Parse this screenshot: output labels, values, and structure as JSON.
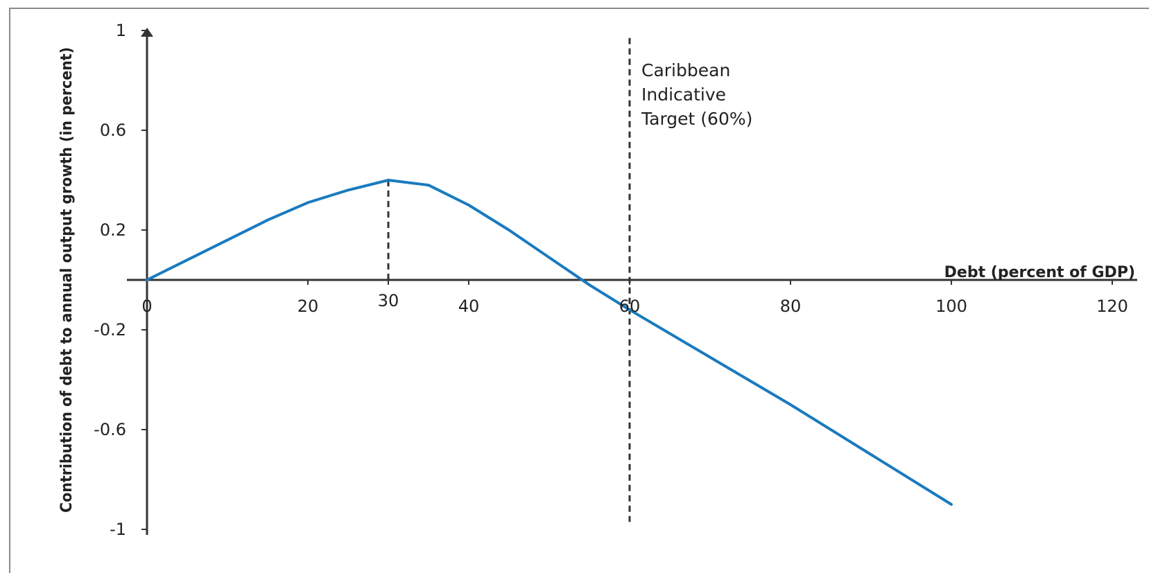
{
  "chart_data": {
    "type": "line",
    "title": "",
    "xlabel": "Debt (percent of GDP)",
    "ylabel": "Contribution of debt to annual output growth (in percent)",
    "xlim": [
      0,
      120
    ],
    "ylim": [
      -1,
      1
    ],
    "x_ticks": [
      "0",
      "20",
      "30",
      "40",
      "60",
      "80",
      "100",
      "120"
    ],
    "y_ticks": [
      "1",
      "0.6",
      "0.2",
      "-0.2",
      "-0.6",
      "-1"
    ],
    "series": [
      {
        "name": "",
        "color": "#1a7abf",
        "x": [
          0,
          5,
          10,
          15,
          20,
          25,
          30,
          35,
          40,
          45,
          50,
          55,
          60,
          70,
          80,
          90,
          100
        ],
        "y": [
          0,
          0.08,
          0.16,
          0.24,
          0.31,
          0.36,
          0.4,
          0.38,
          0.3,
          0.2,
          0.09,
          -0.02,
          -0.12,
          -0.31,
          -0.5,
          -0.7,
          -0.9
        ]
      }
    ],
    "reference_lines": [
      {
        "orientation": "vertical",
        "x": 30,
        "y_from": 0,
        "y_to": 0.4,
        "style": "dashed"
      },
      {
        "orientation": "vertical",
        "x": 60,
        "y_from": -0.97,
        "y_to": 0.97,
        "style": "dashed"
      }
    ],
    "annotations": [
      {
        "lines": [
          "Caribbean",
          "Indicative",
          "Target (60%)"
        ]
      }
    ],
    "grid": false,
    "legend": "none"
  }
}
